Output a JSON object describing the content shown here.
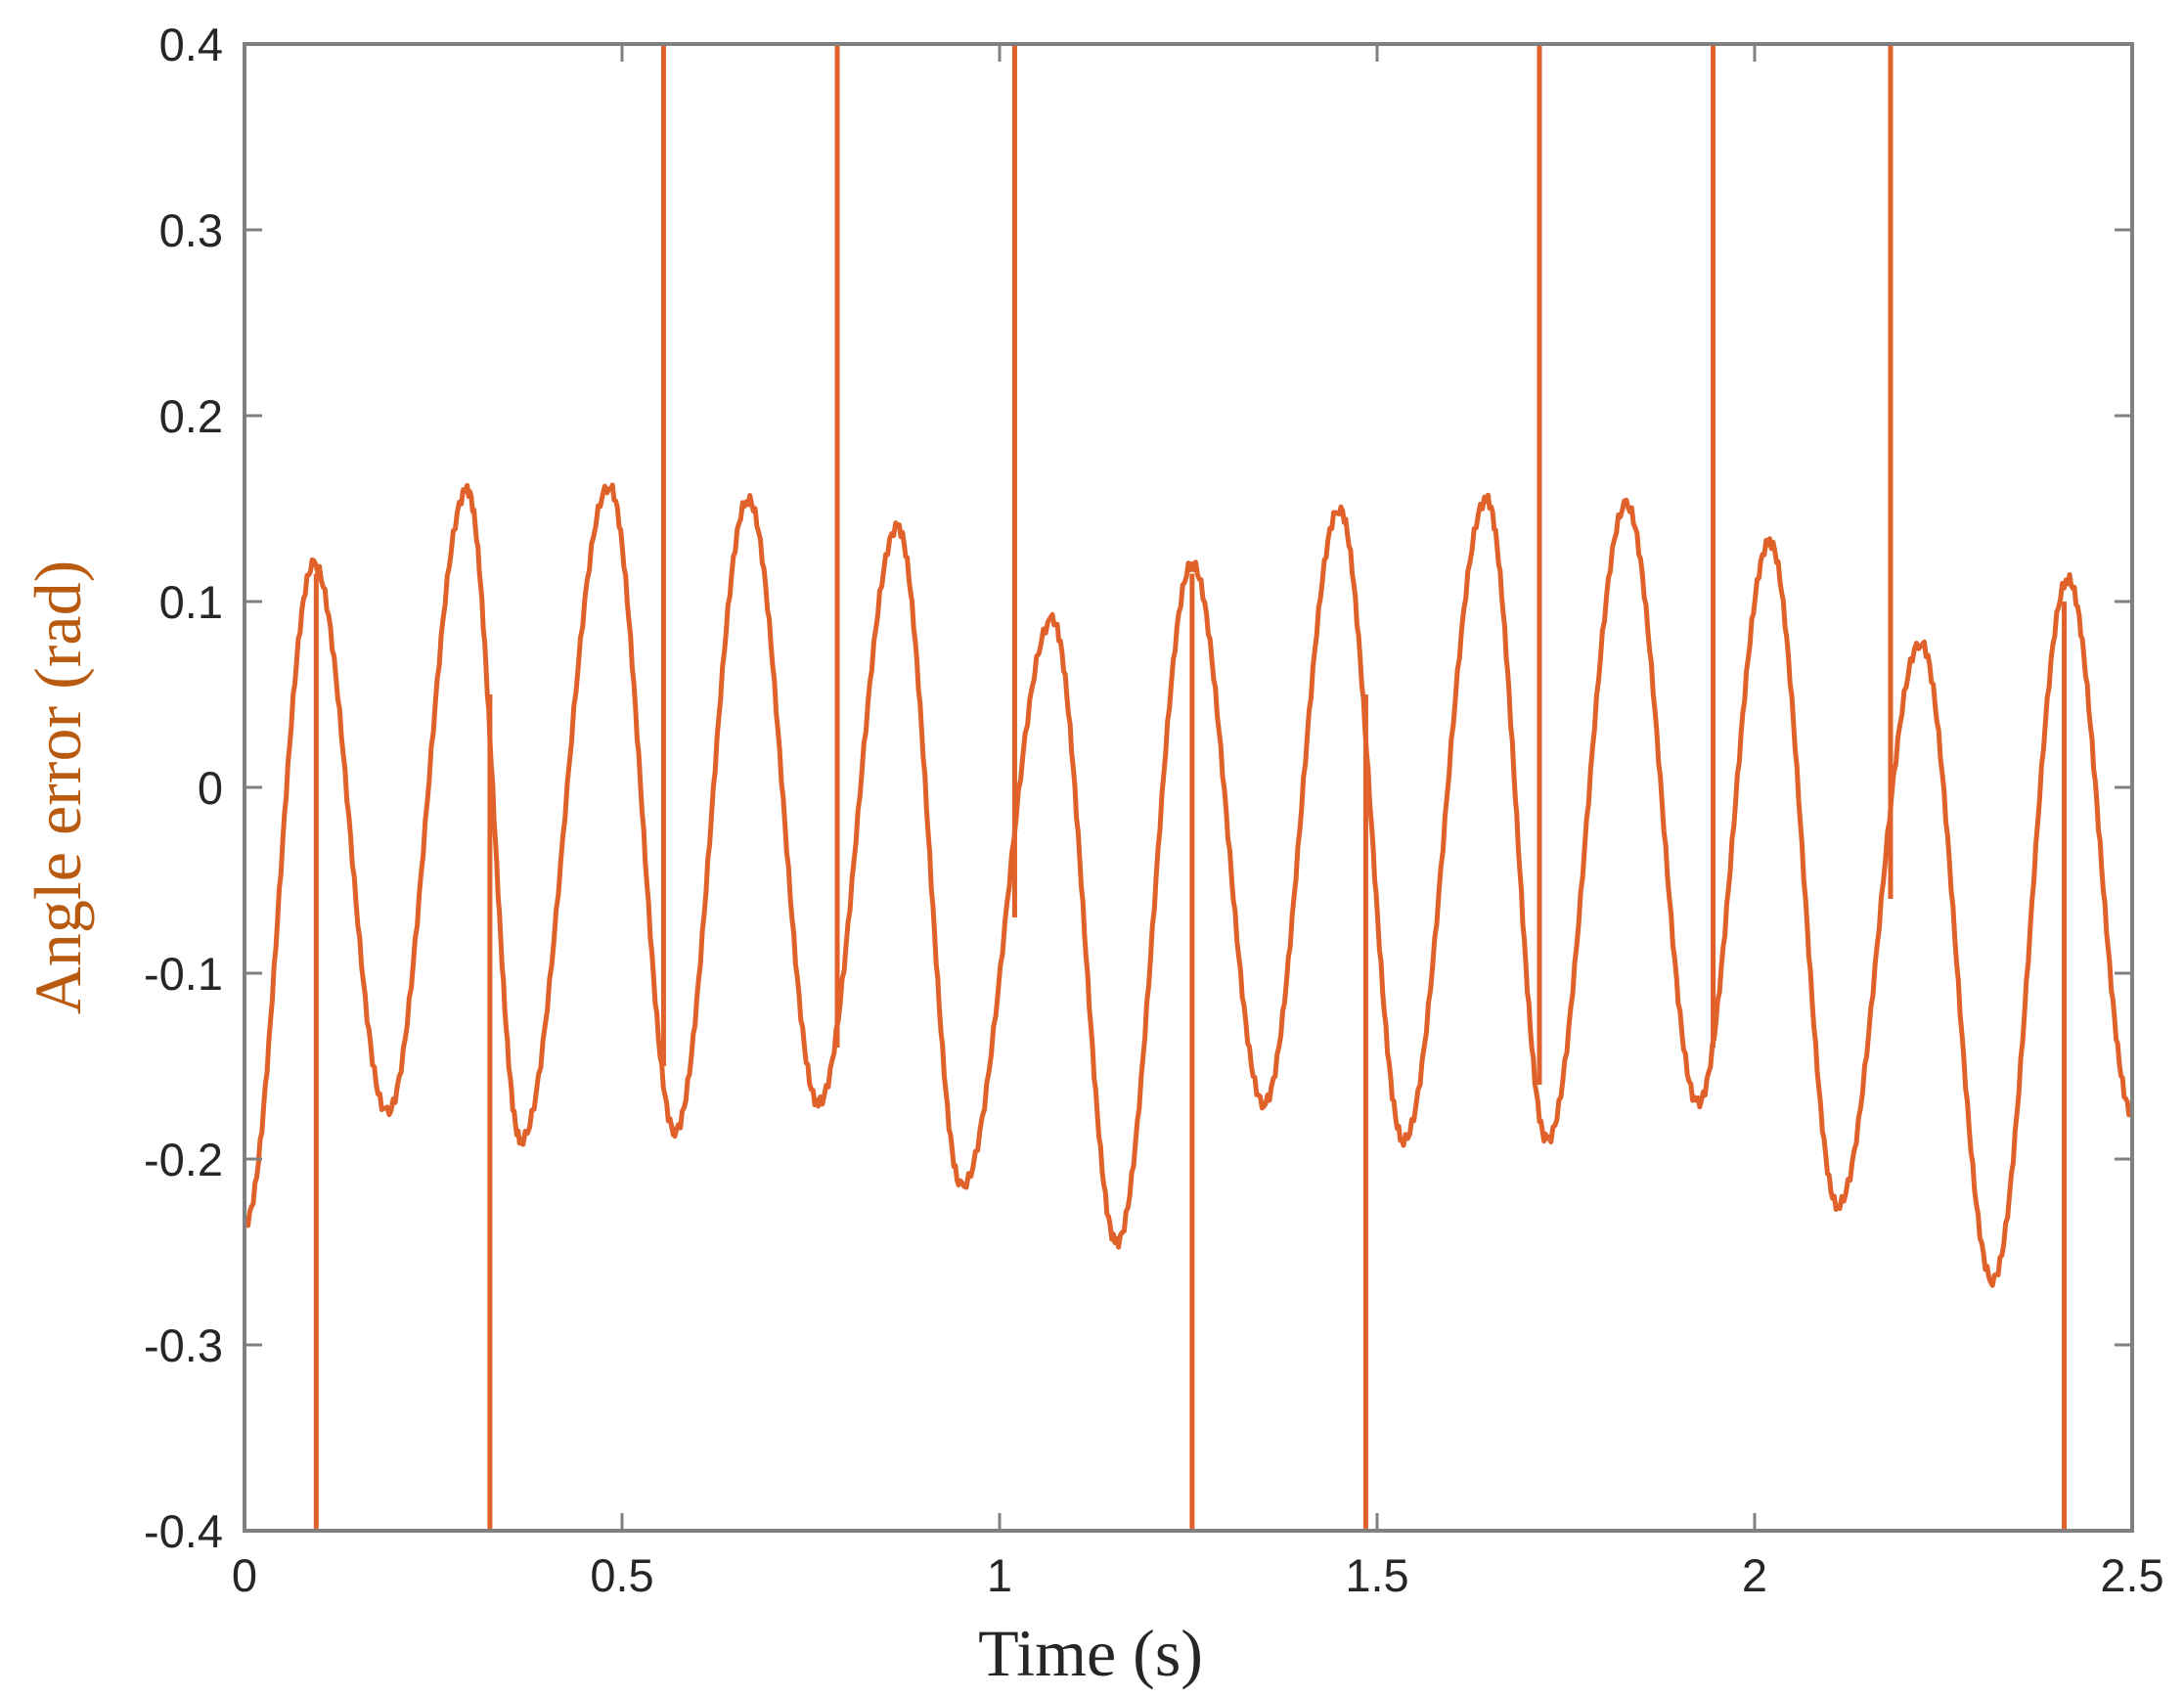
{
  "chart_data": {
    "type": "line",
    "title": "",
    "xlabel": "Time (s)",
    "ylabel": "Angle error (rad)",
    "xlim": [
      0,
      2.5
    ],
    "ylim": [
      -0.4,
      0.4
    ],
    "x_ticks": [
      0,
      0.5,
      1,
      1.5,
      2,
      2.5
    ],
    "x_tick_labels": [
      "0",
      "0.5",
      "1",
      "1.5",
      "2",
      "2.5"
    ],
    "y_ticks": [
      0.4,
      0.3,
      0.2,
      0.1,
      0,
      -0.1,
      -0.2,
      -0.3,
      -0.4
    ],
    "y_tick_labels": [
      "0.4",
      "0.3",
      "0.2",
      "0.1",
      "0",
      "-0.1",
      "-0.2",
      "-0.3",
      "-0.4"
    ],
    "grid": false,
    "legend": "none",
    "colors": {
      "line": "#e0622a",
      "axis": "#808080",
      "xlabel": "#262626",
      "ylabel": "#b85a10"
    },
    "series": [
      {
        "x": [
          0,
          0.092,
          0.189,
          0.295,
          0.366,
          0.483,
          0.57,
          0.667,
          0.76,
          0.865,
          0.95,
          1.07,
          1.155,
          1.255,
          1.35,
          1.45,
          1.535,
          1.645,
          1.725,
          1.83,
          1.925,
          2.02,
          2.11,
          2.22,
          2.315,
          2.415,
          2.5
        ],
        "y": [
          -0.235,
          0.12,
          -0.175,
          0.16,
          -0.19,
          0.162,
          -0.185,
          0.155,
          -0.17,
          0.14,
          -0.215,
          0.09,
          -0.245,
          0.12,
          -0.17,
          0.15,
          -0.19,
          0.155,
          -0.19,
          0.152,
          -0.17,
          0.132,
          -0.225,
          0.078,
          -0.265,
          0.112,
          -0.175
        ]
      }
    ],
    "spikes": [
      {
        "x": 0.095,
        "y_from": 0.115,
        "y_to": -0.4
      },
      {
        "x": 0.325,
        "y_from": 0.05,
        "y_to": -0.4
      },
      {
        "x": 0.555,
        "y_from": -0.15,
        "y_to": 0.4
      },
      {
        "x": 0.785,
        "y_from": -0.14,
        "y_to": 0.4
      },
      {
        "x": 1.02,
        "y_from": -0.07,
        "y_to": 0.4
      },
      {
        "x": 1.255,
        "y_from": 0.115,
        "y_to": -0.4
      },
      {
        "x": 1.485,
        "y_from": 0.05,
        "y_to": -0.4
      },
      {
        "x": 1.715,
        "y_from": -0.16,
        "y_to": 0.4
      },
      {
        "x": 1.945,
        "y_from": -0.14,
        "y_to": 0.4
      },
      {
        "x": 2.18,
        "y_from": -0.06,
        "y_to": 0.4
      },
      {
        "x": 2.41,
        "y_from": 0.1,
        "y_to": -0.4
      }
    ]
  }
}
